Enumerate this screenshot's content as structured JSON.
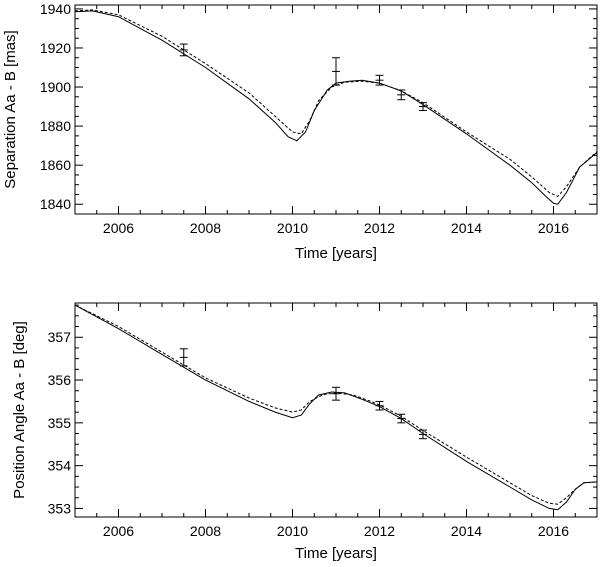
{
  "chart_data": [
    {
      "type": "line",
      "xlabel": "Time [years]",
      "ylabel": "Separation Aa - B [mas]",
      "xlim": [
        2005.0,
        2017.0
      ],
      "ylim": [
        1835.0,
        1942.0
      ],
      "xticks": [
        2006,
        2008,
        2010,
        2012,
        2014,
        2016
      ],
      "yticks": [
        1840,
        1860,
        1880,
        1900,
        1920,
        1940
      ],
      "series": [
        {
          "style": "solid",
          "x": [
            2005.0,
            2005.4,
            2006.0,
            2007.0,
            2008.0,
            2009.0,
            2009.6,
            2009.9,
            2010.1,
            2010.3,
            2010.5,
            2010.8,
            2011.0,
            2011.3,
            2011.6,
            2012.0,
            2012.5,
            2013.0,
            2014.0,
            2015.0,
            2015.5,
            2015.8,
            2016.0,
            2016.1,
            2016.3,
            2016.6,
            2017.0
          ],
          "y": [
            1938.5,
            1939.0,
            1936.0,
            1924.0,
            1910.0,
            1894.0,
            1882.0,
            1874.5,
            1872.5,
            1877.0,
            1888.0,
            1898.5,
            1902.0,
            1903.0,
            1903.5,
            1902.0,
            1898.0,
            1891.0,
            1876.0,
            1860.0,
            1851.0,
            1844.5,
            1840.5,
            1840.0,
            1846.0,
            1859.0,
            1866.5
          ]
        },
        {
          "style": "dashed",
          "x": [
            2005.0,
            2005.4,
            2006.0,
            2007.0,
            2008.0,
            2009.0,
            2009.6,
            2010.0,
            2010.2,
            2010.4,
            2010.6,
            2010.9,
            2011.2,
            2011.6,
            2012.0,
            2012.5,
            2013.0,
            2014.0,
            2015.0,
            2015.5,
            2015.9,
            2016.1,
            2016.3,
            2016.6,
            2017.0
          ],
          "y": [
            1939.0,
            1939.5,
            1937.0,
            1926.0,
            1912.0,
            1897.0,
            1885.0,
            1877.0,
            1876.0,
            1883.0,
            1893.0,
            1900.0,
            1902.5,
            1903.0,
            1902.0,
            1898.0,
            1892.0,
            1877.0,
            1863.0,
            1854.0,
            1846.0,
            1844.0,
            1849.0,
            1859.0,
            1867.0
          ]
        }
      ],
      "errorbars": {
        "x": [
          2007.5,
          2011.0,
          2012.0,
          2012.5,
          2013.0
        ],
        "y": [
          1919.0,
          1908.0,
          1903.5,
          1896.0,
          1890.0
        ],
        "yerr": [
          3.0,
          7.0,
          2.5,
          2.5,
          2.0
        ]
      },
      "grid": false
    },
    {
      "type": "line",
      "xlabel": "Time [years]",
      "ylabel": "Position Angle Aa - B [deg]",
      "xlim": [
        2005.0,
        2017.0
      ],
      "ylim": [
        352.8,
        357.8
      ],
      "xticks": [
        2006,
        2008,
        2010,
        2012,
        2014,
        2016
      ],
      "yticks": [
        353,
        354,
        355,
        356,
        357
      ],
      "series": [
        {
          "style": "solid",
          "x": [
            2005.0,
            2006.0,
            2007.0,
            2008.0,
            2009.0,
            2009.6,
            2010.0,
            2010.2,
            2010.4,
            2010.6,
            2010.9,
            2011.2,
            2011.6,
            2012.0,
            2012.5,
            2013.0,
            2014.0,
            2015.0,
            2015.5,
            2015.9,
            2016.1,
            2016.3,
            2016.5,
            2016.7,
            2017.0
          ],
          "y": [
            357.75,
            357.2,
            356.6,
            356.0,
            355.5,
            355.25,
            355.12,
            355.18,
            355.45,
            355.65,
            355.72,
            355.7,
            355.55,
            355.38,
            355.1,
            354.75,
            354.1,
            353.5,
            353.2,
            353.0,
            352.97,
            353.15,
            353.45,
            353.6,
            353.62
          ]
        },
        {
          "style": "dashed",
          "x": [
            2005.0,
            2006.0,
            2007.0,
            2008.0,
            2009.0,
            2009.6,
            2010.0,
            2010.2,
            2010.4,
            2010.7,
            2011.0,
            2011.4,
            2011.8,
            2012.0,
            2012.5,
            2013.0,
            2014.0,
            2015.0,
            2015.5,
            2015.9,
            2016.1,
            2016.3,
            2016.5,
            2016.7,
            2017.0
          ],
          "y": [
            357.75,
            357.25,
            356.65,
            356.05,
            355.58,
            355.35,
            355.25,
            355.3,
            355.5,
            355.66,
            355.7,
            355.65,
            355.5,
            355.42,
            355.15,
            354.82,
            354.2,
            353.6,
            353.3,
            353.12,
            353.1,
            353.25,
            353.45,
            353.6,
            353.62
          ]
        }
      ],
      "errorbars": {
        "x": [
          2007.5,
          2011.0,
          2012.0,
          2012.5,
          2013.0
        ],
        "y": [
          356.53,
          355.68,
          355.4,
          355.1,
          354.73
        ],
        "yerr": [
          0.2,
          0.15,
          0.1,
          0.1,
          0.1
        ]
      },
      "grid": false
    }
  ]
}
